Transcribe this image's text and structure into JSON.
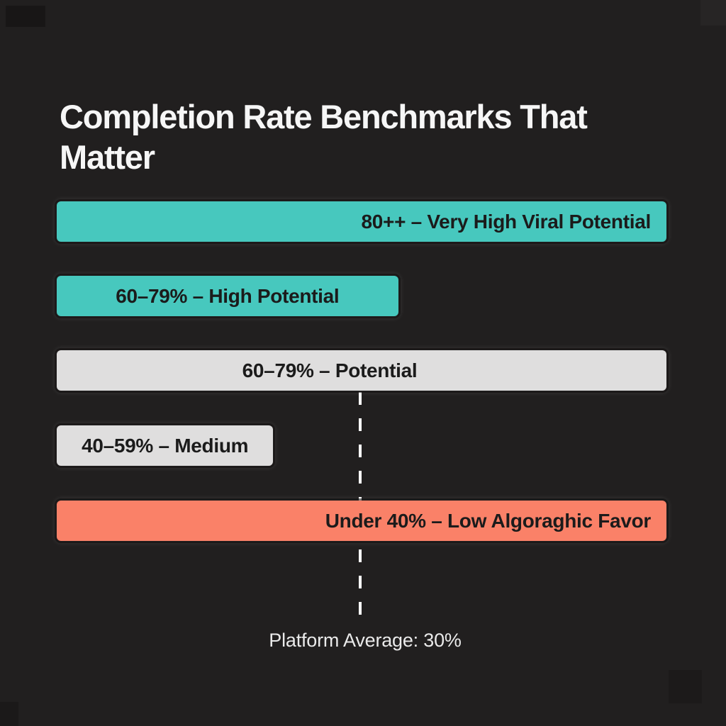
{
  "title": "Completion Rate Benchmarks That Matter",
  "colors": {
    "background": "#211F1F",
    "teal": "#47C8BE",
    "gray": "#DFDEDE",
    "orange": "#FA8168",
    "bar_text": "#1B1B1B",
    "title_text": "#F6F6F6",
    "annotation_text": "#EAEAEA",
    "reference_line": "#FFFFFF"
  },
  "chart_data": {
    "type": "bar",
    "orientation": "horizontal",
    "title": "Completion Rate Benchmarks That Matter",
    "grid": false,
    "legend": false,
    "bars": [
      {
        "label": "80++ – Very High Viral Potential",
        "width_pct": 100,
        "color": "#47C8BE",
        "text_align": "right"
      },
      {
        "label": "60–79% – High Potential",
        "width_pct": 56,
        "color": "#47C8BE",
        "text_align": "center"
      },
      {
        "label": "60–79% – Potential",
        "width_pct": 100,
        "color": "#DFDEDE",
        "text_align": "center-left"
      },
      {
        "label": "40–59% – Medium",
        "width_pct": 35.5,
        "color": "#DFDEDE",
        "text_align": "center"
      },
      {
        "label": "Under 40% – Low Algoraghic Favor",
        "width_pct": 100,
        "color": "#FA8168",
        "text_align": "right"
      }
    ],
    "annotation": {
      "label": "Platform Average: 30%",
      "value_pct": 30,
      "line_style": "dashed",
      "line_x_pct": 49.6
    }
  }
}
